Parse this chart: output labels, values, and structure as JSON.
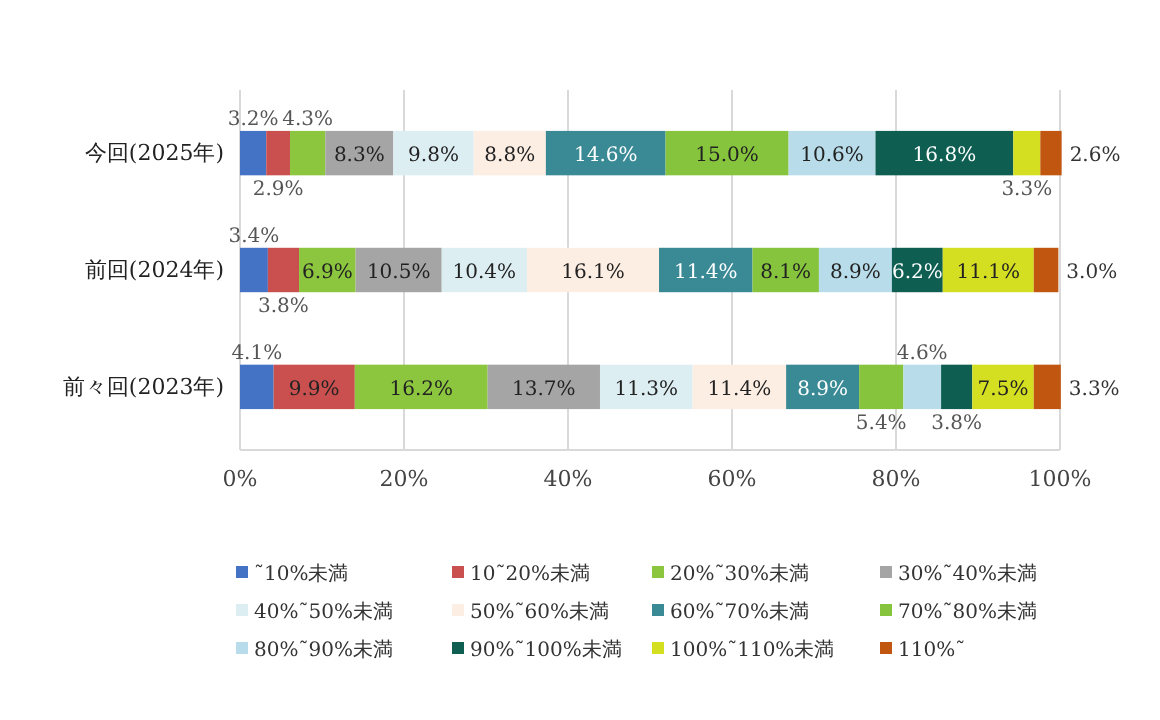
{
  "chart_data": {
    "type": "bar",
    "orientation": "horizontal",
    "stacked": true,
    "categories": [
      "今回(2025年)",
      "前回(2024年)",
      "前々回(2023年)"
    ],
    "series": [
      {
        "name": "˜10%未満",
        "color": "#4472c4",
        "values": [
          3.2,
          3.4,
          4.1
        ],
        "value_labels": [
          "3.2%",
          "3.4%",
          "4.1%"
        ]
      },
      {
        "name": "10˜20%未満",
        "color": "#c9504f",
        "values": [
          2.9,
          3.8,
          9.9
        ],
        "value_labels": [
          "2.9%",
          "3.8%",
          "9.9%"
        ]
      },
      {
        "name": "20%˜30%未満",
        "color": "#8cc63f",
        "values": [
          4.3,
          6.9,
          16.2
        ],
        "value_labels": [
          "4.3%",
          "6.9%",
          "16.2%"
        ]
      },
      {
        "name": "30%˜40%未満",
        "color": "#a5a5a5",
        "values": [
          8.3,
          10.5,
          13.7
        ],
        "value_labels": [
          "8.3%",
          "10.5%",
          "13.7%"
        ]
      },
      {
        "name": "40%˜50%未満",
        "color": "#ddeef3",
        "values": [
          9.8,
          10.4,
          11.3
        ],
        "value_labels": [
          "9.8%",
          "10.4%",
          "11.3%"
        ]
      },
      {
        "name": "50%˜60%未満",
        "color": "#fdeee4",
        "values": [
          8.8,
          16.1,
          11.4
        ],
        "value_labels": [
          "8.8%",
          "16.1%",
          "11.4%"
        ]
      },
      {
        "name": "60%˜70%未満",
        "color": "#3a8a96",
        "values": [
          14.6,
          11.4,
          8.9
        ],
        "value_labels": [
          "14.6%",
          "11.4%",
          "8.9%"
        ]
      },
      {
        "name": "70%˜80%未満",
        "color": "#86c43e",
        "values": [
          15.0,
          8.1,
          5.4
        ],
        "value_labels": [
          "15.0%",
          "8.1%",
          "5.4%"
        ]
      },
      {
        "name": "80%˜90%未満",
        "color": "#b8dcea",
        "values": [
          10.6,
          8.9,
          4.6
        ],
        "value_labels": [
          "10.6%",
          "8.9%",
          "4.6%"
        ]
      },
      {
        "name": "90%˜100%未満",
        "color": "#0e5e52",
        "values": [
          16.8,
          6.2,
          3.8
        ],
        "value_labels": [
          "16.8%",
          "6.2%",
          "3.8%"
        ]
      },
      {
        "name": "100%˜110%未満",
        "color": "#d5df22",
        "values": [
          3.3,
          11.1,
          7.5
        ],
        "value_labels": [
          "3.3%",
          "11.1%",
          "7.5%"
        ]
      },
      {
        "name": "110%˜",
        "color": "#c0560f",
        "values": [
          2.6,
          3.0,
          3.3
        ],
        "value_labels": [
          "2.6%",
          "3.0%",
          "3.3%"
        ]
      }
    ],
    "xlim": [
      0,
      100
    ],
    "xticks": [
      {
        "value": 0,
        "label": "0%"
      },
      {
        "value": 20,
        "label": "20%"
      },
      {
        "value": 40,
        "label": "40%"
      },
      {
        "value": 60,
        "label": "60%"
      },
      {
        "value": 80,
        "label": "80%"
      },
      {
        "value": 100,
        "label": "100%"
      }
    ],
    "grid": "x",
    "legend": "bottom"
  }
}
